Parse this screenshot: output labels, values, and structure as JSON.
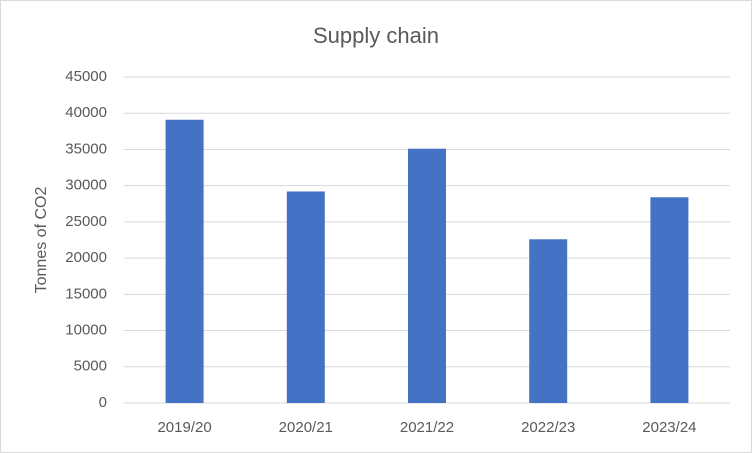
{
  "chart_data": {
    "type": "bar",
    "title": "Supply chain",
    "y_label": "Tonnes of CO2",
    "categories": [
      "2019/20",
      "2020/21",
      "2021/22",
      "2022/23",
      "2023/24"
    ],
    "values": [
      39100,
      29200,
      35100,
      22600,
      28400
    ],
    "color": "#4472c4",
    "ylim": [
      0,
      45000
    ],
    "yticks": [
      0,
      5000,
      10000,
      15000,
      20000,
      25000,
      30000,
      35000,
      40000,
      45000
    ],
    "grid": true
  }
}
